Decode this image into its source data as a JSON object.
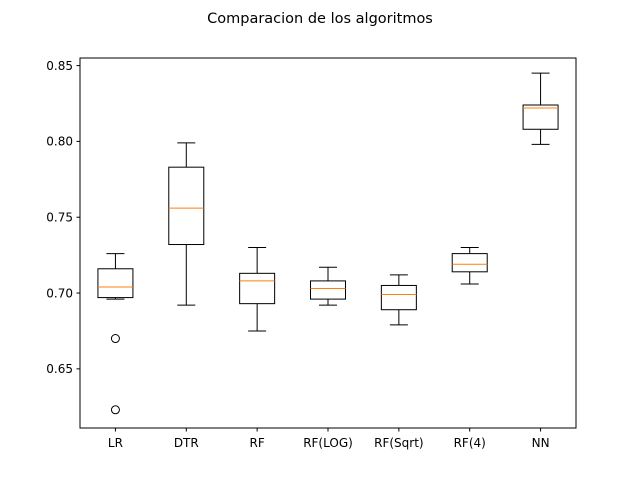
{
  "chart_data": {
    "type": "box",
    "title": "Comparacion de los algoritmos",
    "xlabel": "",
    "ylabel": "",
    "ylim": [
      0.611,
      0.855
    ],
    "yticks": [
      0.65,
      0.7,
      0.75,
      0.8,
      0.85
    ],
    "ytick_labels": [
      "0.65",
      "0.70",
      "0.75",
      "0.80",
      "0.85"
    ],
    "categories": [
      "LR",
      "DTR",
      "RF",
      "RF(LOG)",
      "RF(Sqrt)",
      "RF(4)",
      "NN"
    ],
    "boxes": [
      {
        "label": "LR",
        "whisker_low": 0.696,
        "q1": 0.697,
        "median": 0.704,
        "q3": 0.716,
        "whisker_high": 0.726,
        "outliers": [
          0.67,
          0.623
        ]
      },
      {
        "label": "DTR",
        "whisker_low": 0.692,
        "q1": 0.732,
        "median": 0.756,
        "q3": 0.783,
        "whisker_high": 0.799,
        "outliers": []
      },
      {
        "label": "RF",
        "whisker_low": 0.675,
        "q1": 0.693,
        "median": 0.708,
        "q3": 0.713,
        "whisker_high": 0.73,
        "outliers": []
      },
      {
        "label": "RF(LOG)",
        "whisker_low": 0.692,
        "q1": 0.696,
        "median": 0.703,
        "q3": 0.708,
        "whisker_high": 0.717,
        "outliers": []
      },
      {
        "label": "RF(Sqrt)",
        "whisker_low": 0.679,
        "q1": 0.689,
        "median": 0.699,
        "q3": 0.705,
        "whisker_high": 0.712,
        "outliers": []
      },
      {
        "label": "RF(4)",
        "whisker_low": 0.706,
        "q1": 0.714,
        "median": 0.719,
        "q3": 0.726,
        "whisker_high": 0.73,
        "outliers": []
      },
      {
        "label": "NN",
        "whisker_low": 0.798,
        "q1": 0.808,
        "median": 0.822,
        "q3": 0.824,
        "whisker_high": 0.845,
        "outliers": []
      }
    ],
    "grid": false,
    "colors": {
      "box": "#000000",
      "median": "#ff7f0e",
      "background": "#ffffff"
    }
  }
}
